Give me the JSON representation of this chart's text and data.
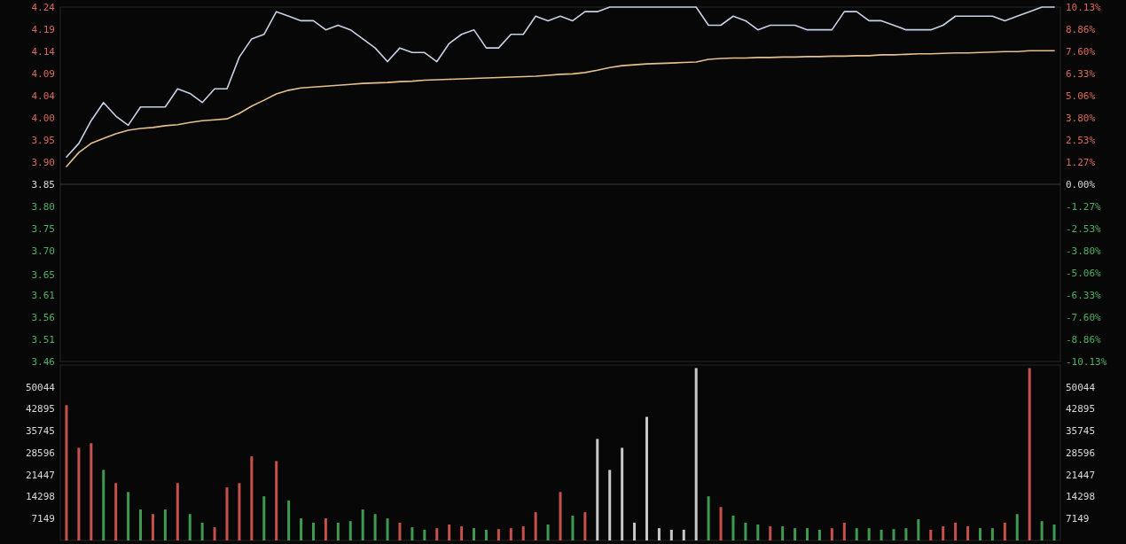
{
  "chart_data": [
    {
      "type": "line",
      "tick_labels": "y",
      "categories": [
        null,
        null,
        null,
        null,
        null,
        null,
        null,
        null,
        null,
        null,
        null,
        null,
        null,
        null,
        null,
        null,
        null,
        null,
        null,
        null,
        null,
        null,
        null,
        null,
        null,
        null,
        null,
        null,
        null,
        null,
        null,
        null,
        null,
        null,
        null,
        null,
        null,
        null,
        null,
        null,
        null,
        null,
        null,
        null,
        null,
        null,
        null,
        null,
        null,
        null,
        null,
        null,
        null,
        null,
        null,
        null,
        null,
        null,
        null,
        null,
        null,
        null,
        null,
        null,
        null,
        null,
        null,
        null,
        null,
        null,
        null,
        null,
        null,
        null,
        null,
        null,
        null,
        null,
        null,
        null,
        null
      ],
      "series": [
        {
          "color": "#c8d2e6",
          "values": [
            3.91,
            3.94,
            3.99,
            4.03,
            4.0,
            3.98,
            4.02,
            4.02,
            4.02,
            4.06,
            4.05,
            4.03,
            4.06,
            4.06,
            4.13,
            4.17,
            4.18,
            4.23,
            4.22,
            4.21,
            4.21,
            4.19,
            4.2,
            4.19,
            4.17,
            4.15,
            4.12,
            4.15,
            4.14,
            4.14,
            4.12,
            4.16,
            4.18,
            4.19,
            4.15,
            4.15,
            4.18,
            4.18,
            4.22,
            4.21,
            4.22,
            4.21,
            4.23,
            4.23,
            4.24,
            4.24,
            4.24,
            4.24,
            4.24,
            4.24,
            4.24,
            4.24,
            4.2,
            4.2,
            4.22,
            4.21,
            4.19,
            4.2,
            4.2,
            4.2,
            4.19,
            4.19,
            4.19,
            4.23,
            4.23,
            4.21,
            4.21,
            4.2,
            4.19,
            4.19,
            4.19,
            4.2,
            4.22,
            4.22,
            4.22,
            4.22,
            4.21,
            4.22,
            4.23,
            4.24,
            4.24
          ]
        },
        {
          "color": "#e6c08c",
          "values": [
            3.889,
            3.92,
            3.94,
            3.951,
            3.961,
            3.969,
            3.973,
            3.975,
            3.979,
            3.981,
            3.986,
            3.99,
            3.992,
            3.994,
            4.006,
            4.022,
            4.035,
            4.049,
            4.057,
            4.062,
            4.064,
            4.066,
            4.068,
            4.07,
            4.072,
            4.073,
            4.074,
            4.076,
            4.077,
            4.079,
            4.08,
            4.081,
            4.082,
            4.083,
            4.084,
            4.085,
            4.086,
            4.087,
            4.088,
            4.09,
            4.092,
            4.093,
            4.096,
            4.101,
            4.107,
            4.111,
            4.113,
            4.115,
            4.116,
            4.117,
            4.118,
            4.119,
            4.125,
            4.127,
            4.128,
            4.128,
            4.129,
            4.129,
            4.13,
            4.13,
            4.131,
            4.131,
            4.132,
            4.132,
            4.133,
            4.133,
            4.135,
            4.135,
            4.136,
            4.137,
            4.137,
            4.138,
            4.139,
            4.139,
            4.14,
            4.141,
            4.142,
            4.142,
            4.144,
            4.144,
            4.144
          ]
        }
      ],
      "ylim": [
        3.46,
        4.24
      ],
      "yticks": [
        3.46,
        {
          "value": 3.5089,
          "label": "3.51"
        },
        {
          "value": 3.5574,
          "label": "3.56"
        },
        {
          "value": 3.6063,
          "label": "3.61"
        },
        3.65,
        {
          "value": 3.7037,
          "label": "3.70"
        },
        {
          "value": 3.7526,
          "label": "3.75"
        },
        {
          "value": 3.8011,
          "label": "3.80"
        },
        3.85,
        {
          "value": 3.8989,
          "label": "3.90"
        },
        {
          "value": 3.9474,
          "label": "3.95"
        },
        {
          "value": 3.9963,
          "label": "4.00"
        },
        {
          "value": 4.0448,
          "label": "4.04"
        },
        {
          "value": 4.0937,
          "label": "4.09"
        },
        {
          "value": 4.1426,
          "label": "4.14"
        },
        {
          "value": 4.1912,
          "label": "4.19"
        },
        4.24
      ],
      "y2lim": [
        -10.13,
        10.13
      ],
      "y2ticks": [
        {
          "value": -10.13,
          "label": "-10.13%"
        },
        {
          "value": -8.86,
          "label": "-8.86%"
        },
        {
          "value": -7.6,
          "label": "-7.60%"
        },
        {
          "value": -6.33,
          "label": "-6.33%"
        },
        {
          "value": -5.06,
          "label": "-5.06%"
        },
        {
          "value": -3.8,
          "label": "-3.80%"
        },
        {
          "value": -2.53,
          "label": "-2.53%"
        },
        {
          "value": -1.27,
          "label": "-1.27%"
        },
        {
          "value": 0,
          "label": "0.00%"
        },
        {
          "value": 1.27,
          "label": "1.27%"
        },
        {
          "value": 2.53,
          "label": "2.53%"
        },
        {
          "value": 3.8,
          "label": "3.80%"
        },
        {
          "value": 5.06,
          "label": "5.06%"
        },
        {
          "value": 6.33,
          "label": "6.33%"
        },
        {
          "value": 7.6,
          "label": "7.60%"
        },
        {
          "value": 8.86,
          "label": "8.86%"
        },
        {
          "value": 10.13,
          "label": "10.13%"
        }
      ],
      "ref_lines": [
        {
          "axis": "y2",
          "value": 0,
          "color": "#3a3a3a"
        }
      ]
    },
    {
      "type": "bar",
      "tick_labels": "y",
      "categories": [
        null,
        null,
        null,
        null,
        null,
        null,
        null,
        null,
        null,
        null,
        null,
        null,
        null,
        null,
        null,
        null,
        null,
        null,
        null,
        null,
        null,
        null,
        null,
        null,
        null,
        null,
        null,
        null,
        null,
        null,
        null,
        null,
        null,
        null,
        null,
        null,
        null,
        null,
        null,
        null,
        null,
        null,
        null,
        null,
        null,
        null,
        null,
        null,
        null,
        null,
        null,
        null,
        null,
        null,
        null,
        null,
        null,
        null,
        null,
        null,
        null,
        null,
        null,
        null,
        null,
        null,
        null,
        null,
        null,
        null,
        null,
        null,
        null,
        null,
        null,
        null,
        null,
        null,
        null,
        null,
        null
      ],
      "values": [
        44100,
        30200,
        31700,
        23000,
        18700,
        15800,
        10100,
        8600,
        10100,
        18700,
        8600,
        5800,
        4300,
        17300,
        18700,
        27400,
        14400,
        25900,
        13000,
        7200,
        5800,
        7200,
        5800,
        6300,
        10100,
        8600,
        7200,
        5800,
        4300,
        3500,
        4000,
        5200,
        4600,
        4000,
        3500,
        3700,
        4000,
        4600,
        9200,
        5200,
        15800,
        8100,
        9200,
        33100,
        23000,
        30200,
        5800,
        40300,
        4000,
        3500,
        3500,
        56200,
        14400,
        10900,
        8100,
        5800,
        5200,
        4600,
        4600,
        4000,
        4000,
        3500,
        4000,
        5800,
        4000,
        4000,
        3500,
        3700,
        4000,
        6900,
        3500,
        4600,
        5800,
        4600,
        4000,
        4000,
        5800,
        8600,
        56200,
        6300,
        5200
      ],
      "colors": [
        "#c8504a",
        "#c8504a",
        "#c8504a",
        "#3e9a4e",
        "#c8504a",
        "#3e9a4e",
        "#3e9a4e",
        "#c8504a",
        "#3e9a4e",
        "#c8504a",
        "#3e9a4e",
        "#3e9a4e",
        "#c8504a",
        "#c8504a",
        "#c8504a",
        "#c8504a",
        "#3e9a4e",
        "#c8504a",
        "#3e9a4e",
        "#3e9a4e",
        "#3e9a4e",
        "#c8504a",
        "#3e9a4e",
        "#3e9a4e",
        "#3e9a4e",
        "#3e9a4e",
        "#3e9a4e",
        "#c8504a",
        "#3e9a4e",
        "#3e9a4e",
        "#c8504a",
        "#c8504a",
        "#c8504a",
        "#3e9a4e",
        "#3e9a4e",
        "#c8504a",
        "#c8504a",
        "#c8504a",
        "#c8504a",
        "#3e9a4e",
        "#c8504a",
        "#3e9a4e",
        "#c8504a",
        "#c8c8c8",
        "#c8c8c8",
        "#c8c8c8",
        "#c8c8c8",
        "#c8c8c8",
        "#c8c8c8",
        "#c8c8c8",
        "#c8c8c8",
        "#c8c8c8",
        "#3e9a4e",
        "#c8504a",
        "#3e9a4e",
        "#3e9a4e",
        "#3e9a4e",
        "#c8504a",
        "#3e9a4e",
        "#3e9a4e",
        "#3e9a4e",
        "#3e9a4e",
        "#c8504a",
        "#c8504a",
        "#3e9a4e",
        "#3e9a4e",
        "#3e9a4e",
        "#3e9a4e",
        "#3e9a4e",
        "#3e9a4e",
        "#c8504a",
        "#c8504a",
        "#c8504a",
        "#c8504a",
        "#3e9a4e",
        "#3e9a4e",
        "#c8504a",
        "#3e9a4e",
        "#c8504a",
        "#3e9a4e",
        "#3e9a4e"
      ],
      "ylim": [
        0,
        57193
      ],
      "yticks": [
        7149,
        14298,
        21447,
        28596,
        35745,
        42895,
        50044
      ],
      "y2lim": [
        0,
        57193
      ],
      "y2ticks": [
        7149,
        14298,
        21447,
        28596,
        35745,
        42895,
        50044
      ]
    }
  ]
}
